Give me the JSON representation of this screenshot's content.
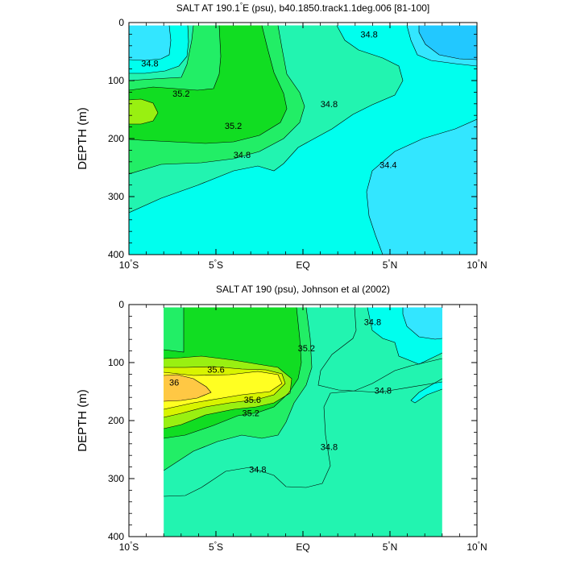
{
  "chart_data": [
    {
      "type": "contour",
      "title_parts": [
        "SALT AT 190.1",
        "°",
        "E (psu), b40.1850.track1.1deg.006 [81-100]"
      ],
      "ylabel": "DEPTH (m)",
      "x_ticks": [
        {
          "value": -10,
          "num": "10",
          "hemi": "S"
        },
        {
          "value": -5,
          "num": "5",
          "hemi": "S"
        },
        {
          "value": 0,
          "label": "EQ"
        },
        {
          "value": 5,
          "num": "5",
          "hemi": "N"
        },
        {
          "value": 10,
          "num": "10",
          "hemi": "N"
        }
      ],
      "y_ticks": [
        0,
        100,
        200,
        300,
        400
      ],
      "xlim": [
        -10,
        10
      ],
      "ylim": [
        0,
        400
      ],
      "y_inverted": true,
      "data_xlim": [
        -10,
        10
      ],
      "data_ylim": [
        5,
        400
      ],
      "colors": {
        "34.0-34.4": "#22c8ff",
        "34.4-34.6": "#33e6ff",
        "34.6-34.8": "#00ffee",
        "34.8-35.0": "#22f4b0",
        "35.0-35.2": "#22ee66",
        "35.2-35.4": "#11dd22",
        "35.4-35.6": "#99f011"
      },
      "contour_labels": [
        {
          "text": "34.8",
          "x": -8.8,
          "y": 70
        },
        {
          "text": "35.2",
          "x": -7.0,
          "y": 122
        },
        {
          "text": "35.2",
          "x": -4.0,
          "y": 178
        },
        {
          "text": "34.8",
          "x": -3.5,
          "y": 228
        },
        {
          "text": "34.8",
          "x": 3.8,
          "y": 20
        },
        {
          "text": "34.8",
          "x": 1.5,
          "y": 140
        },
        {
          "text": "34.4",
          "x": 4.9,
          "y": 245
        }
      ]
    },
    {
      "type": "contour",
      "title_parts": [
        "SALT AT 190 (psu), Johnson et al (2002)"
      ],
      "ylabel": "DEPTH (m)",
      "x_ticks": [
        {
          "value": -10,
          "num": "10",
          "hemi": "S"
        },
        {
          "value": -5,
          "num": "5",
          "hemi": "S"
        },
        {
          "value": 0,
          "label": "EQ"
        },
        {
          "value": 5,
          "num": "5",
          "hemi": "N"
        },
        {
          "value": 10,
          "num": "10",
          "hemi": "N"
        }
      ],
      "y_ticks": [
        0,
        100,
        200,
        300,
        400
      ],
      "xlim": [
        -10,
        10
      ],
      "ylim": [
        0,
        400
      ],
      "y_inverted": true,
      "data_xlim": [
        -8,
        8
      ],
      "data_ylim": [
        5,
        400
      ],
      "colors": {
        "34.4-34.6": "#33e6ff",
        "34.6-34.8": "#00ffee",
        "34.8-35.0": "#22f4b0",
        "35.0-35.2": "#22ee66",
        "35.2-35.4": "#11dd22",
        "35.4-35.6": "#99f011",
        "35.6-35.8": "#d8f400",
        "35.8-36.0": "#ffff22",
        "36.0-36.2": "#ffc844"
      },
      "contour_labels": [
        {
          "text": "36",
          "x": -7.4,
          "y": 134
        },
        {
          "text": "35.6",
          "x": -5.0,
          "y": 112
        },
        {
          "text": "35.6",
          "x": -2.9,
          "y": 164
        },
        {
          "text": "35.2",
          "x": -3.0,
          "y": 187
        },
        {
          "text": "35.2",
          "x": 0.2,
          "y": 75
        },
        {
          "text": "34.8",
          "x": 4.0,
          "y": 30
        },
        {
          "text": "34.8",
          "x": 4.6,
          "y": 148
        },
        {
          "text": "34.8",
          "x": 1.5,
          "y": 245
        },
        {
          "text": "34.8",
          "x": -2.6,
          "y": 284
        }
      ]
    }
  ]
}
